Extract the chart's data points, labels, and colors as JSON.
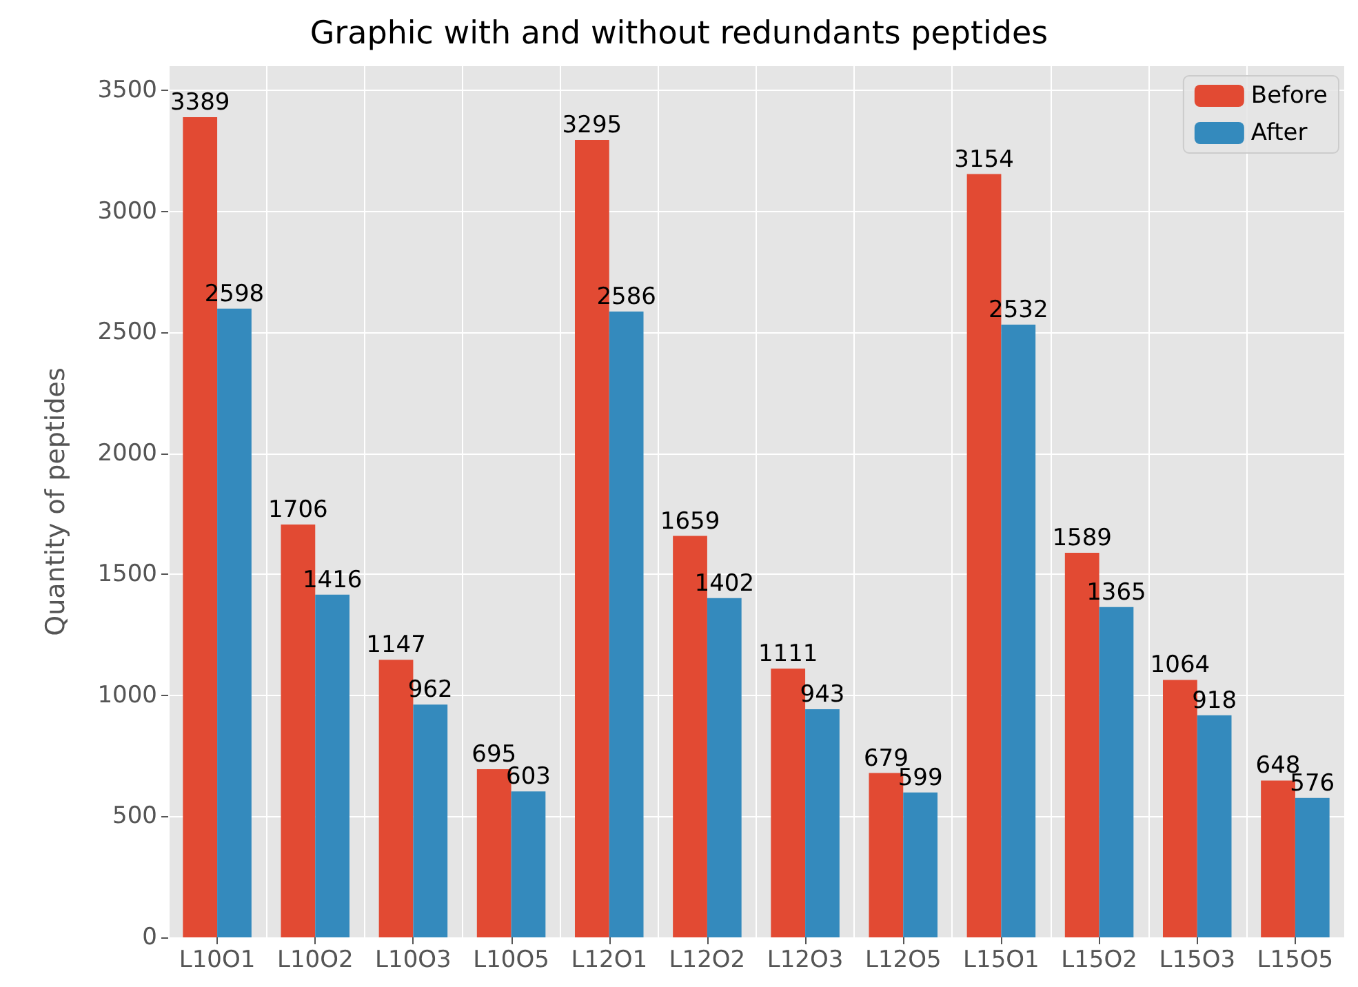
{
  "chart_data": {
    "type": "bar",
    "title": "Graphic with and without redundants peptides",
    "ylabel": "Quantity of peptides",
    "categories": [
      "L10O1",
      "L10O2",
      "L10O3",
      "L10O5",
      "L12O1",
      "L12O2",
      "L12O3",
      "L12O5",
      "L15O1",
      "L15O2",
      "L15O3",
      "L15O5"
    ],
    "series": [
      {
        "name": "Before",
        "color": "#e24a33",
        "values": [
          3389,
          1706,
          1147,
          695,
          3295,
          1659,
          1111,
          679,
          3154,
          1589,
          1064,
          648
        ]
      },
      {
        "name": "After",
        "color": "#348abd",
        "values": [
          2598,
          1416,
          962,
          603,
          2586,
          1402,
          943,
          599,
          2532,
          1365,
          918,
          576
        ]
      }
    ],
    "ylim": [
      0,
      3600
    ],
    "yticks": [
      0,
      500,
      1000,
      1500,
      2000,
      2500,
      3000,
      3500
    ],
    "grid": true,
    "legend": "top right",
    "data_labels": true
  }
}
